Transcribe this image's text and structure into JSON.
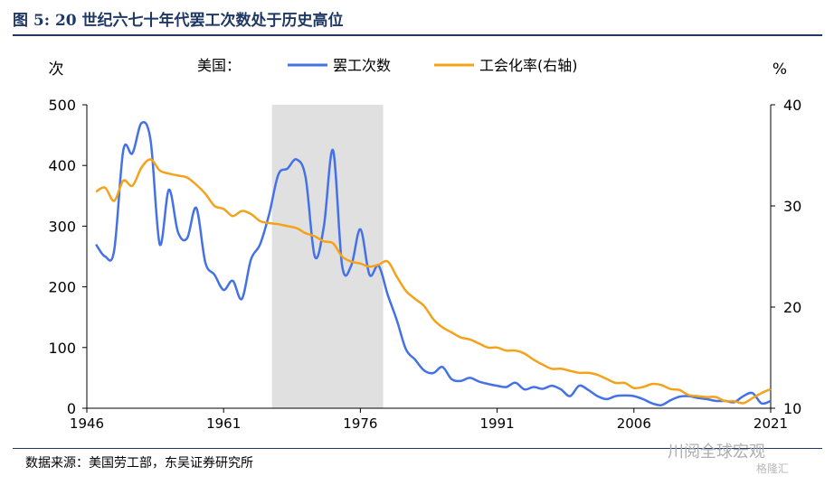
{
  "figure": {
    "title": "图 5:  20 世纪六七十年代罢工次数处于历史高位",
    "source": "数据来源：美国劳工部，东吴证券研究所",
    "watermark": "川阅全球宏观",
    "watermark_sub": "格隆汇"
  },
  "chart_data": {
    "type": "line",
    "legend_title": "美国：",
    "legend_position": "top",
    "y_left_unit": "次",
    "y_right_unit": "%",
    "xlim": [
      1946,
      2021
    ],
    "ylim_left": [
      0,
      500
    ],
    "ylim_right": [
      10,
      40
    ],
    "x_ticks": [
      "1946",
      "1961",
      "1976",
      "1991",
      "2006",
      "2021"
    ],
    "x_tick_values": [
      1946,
      1961,
      1976,
      1991,
      2006,
      2021
    ],
    "y_left_ticks": [
      "0",
      "100",
      "200",
      "300",
      "400",
      "500"
    ],
    "y_left_tick_values": [
      0,
      100,
      200,
      300,
      400,
      500
    ],
    "y_right_ticks": [
      "10",
      "20",
      "30",
      "40"
    ],
    "y_right_tick_values": [
      10,
      20,
      30,
      40
    ],
    "grid": false,
    "shaded_region": {
      "x_start": 1966.3,
      "x_end": 1978.5,
      "color": "#e0e0e0"
    },
    "series": [
      {
        "name": "罢工次数",
        "axis": "left",
        "color": "#4472e6",
        "x": [
          1947,
          1948,
          1949,
          1950,
          1951,
          1952,
          1953,
          1954,
          1955,
          1956,
          1957,
          1958,
          1959,
          1960,
          1961,
          1962,
          1963,
          1964,
          1965,
          1966,
          1967,
          1968,
          1969,
          1970,
          1971,
          1972,
          1973,
          1974,
          1975,
          1976,
          1977,
          1978,
          1979,
          1980,
          1981,
          1982,
          1983,
          1984,
          1985,
          1986,
          1987,
          1988,
          1989,
          1990,
          1991,
          1992,
          1993,
          1994,
          1995,
          1996,
          1997,
          1998,
          1999,
          2000,
          2001,
          2002,
          2003,
          2004,
          2005,
          2006,
          2007,
          2008,
          2009,
          2010,
          2011,
          2012,
          2013,
          2014,
          2015,
          2016,
          2017,
          2018,
          2019,
          2020,
          2021
        ],
        "values": [
          270,
          250,
          260,
          425,
          420,
          470,
          440,
          270,
          360,
          290,
          280,
          330,
          240,
          220,
          195,
          210,
          180,
          245,
          270,
          320,
          385,
          395,
          410,
          380,
          250,
          300,
          425,
          235,
          235,
          295,
          220,
          235,
          187,
          145,
          97,
          80,
          62,
          58,
          68,
          48,
          45,
          50,
          44,
          40,
          37,
          35,
          42,
          31,
          35,
          32,
          37,
          31,
          20,
          37,
          30,
          20,
          15,
          20,
          21,
          20,
          15,
          8,
          5,
          13,
          19,
          20,
          17,
          15,
          12,
          12,
          10,
          20,
          25,
          8,
          12
        ]
      },
      {
        "name": "工会化率(右轴)",
        "axis": "right",
        "color": "#f5a21b",
        "x": [
          1947,
          1948,
          1949,
          1950,
          1951,
          1952,
          1953,
          1954,
          1955,
          1956,
          1957,
          1958,
          1959,
          1960,
          1961,
          1962,
          1963,
          1964,
          1965,
          1966,
          1967,
          1968,
          1969,
          1970,
          1971,
          1972,
          1973,
          1974,
          1975,
          1976,
          1977,
          1978,
          1979,
          1980,
          1981,
          1982,
          1983,
          1984,
          1985,
          1986,
          1987,
          1988,
          1989,
          1990,
          1991,
          1992,
          1993,
          1994,
          1995,
          1996,
          1997,
          1998,
          1999,
          2000,
          2001,
          2002,
          2003,
          2004,
          2005,
          2006,
          2007,
          2008,
          2009,
          2010,
          2011,
          2012,
          2013,
          2014,
          2015,
          2016,
          2017,
          2018,
          2019,
          2020,
          2021
        ],
        "values": [
          31.4,
          31.8,
          30.5,
          32.5,
          32.0,
          33.8,
          34.6,
          33.5,
          33.2,
          33.0,
          32.8,
          32.1,
          31.2,
          30.0,
          29.7,
          29.0,
          29.5,
          29.2,
          28.5,
          28.3,
          28.2,
          28.0,
          27.8,
          27.3,
          27.0,
          26.5,
          26.3,
          25.0,
          24.5,
          24.3,
          24.0,
          24.2,
          24.5,
          23.0,
          21.6,
          20.8,
          20.1,
          18.8,
          18.0,
          17.5,
          17.0,
          16.8,
          16.4,
          16.0,
          16.0,
          15.7,
          15.7,
          15.4,
          14.8,
          14.3,
          13.9,
          13.9,
          13.7,
          13.5,
          13.5,
          13.3,
          12.9,
          12.5,
          12.5,
          12.0,
          12.1,
          12.4,
          12.3,
          11.9,
          11.8,
          11.3,
          11.2,
          11.1,
          11.1,
          10.7,
          10.7,
          10.5,
          11.0,
          11.5,
          11.9
        ]
      }
    ]
  }
}
